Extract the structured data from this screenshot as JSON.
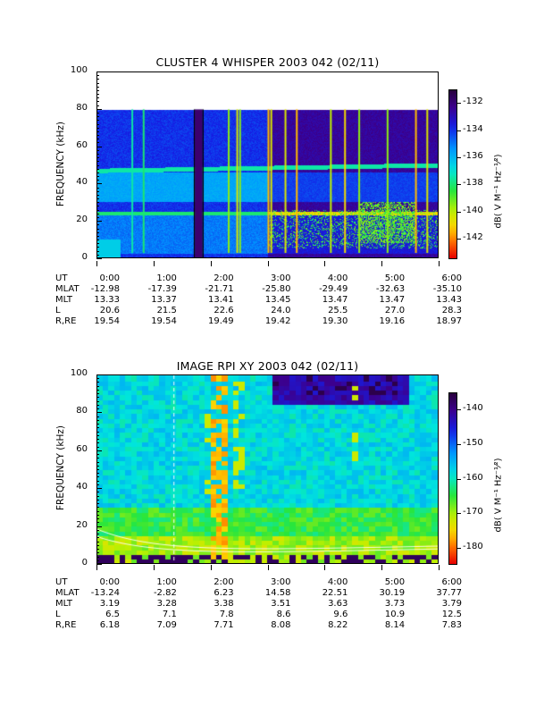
{
  "chart_data": [
    {
      "type": "heatmap",
      "title": "CLUSTER 4 WHISPER 2003 042 (02/11)",
      "ylabel": "FREQUENCY (kHz)",
      "ylim": [
        0,
        100
      ],
      "yticks": [
        "0",
        "20",
        "40",
        "60",
        "80",
        "100"
      ],
      "data_top_khz": 80,
      "colorbar": {
        "label": "dB( V M⁻¹ Hz⁻¹⁄²)",
        "range": [
          -143.5,
          -131
        ],
        "ticks": [
          "-132",
          "-134",
          "-136",
          "-138",
          "-140",
          "-142"
        ]
      },
      "ephemeris": {
        "labels": [
          "UT",
          "MLAT",
          "MLT",
          "L",
          "R,RE"
        ],
        "UT": [
          "0:00",
          "1:00",
          "2:00",
          "3:00",
          "4:00",
          "5:00",
          "6:00"
        ],
        "MLAT": [
          "-12.98",
          "-17.39",
          "-21.71",
          "-25.80",
          "-29.49",
          "-32.63",
          "-35.10"
        ],
        "MLT": [
          "13.33",
          "13.37",
          "13.41",
          "13.45",
          "13.47",
          "13.47",
          "13.43"
        ],
        "L": [
          "20.6",
          "21.5",
          "22.6",
          "24.0",
          "25.5",
          "27.0",
          "28.3"
        ],
        "R,RE": [
          "19.54",
          "19.54",
          "19.49",
          "19.42",
          "19.30",
          "19.16",
          "18.97"
        ]
      }
    },
    {
      "type": "heatmap",
      "title": "IMAGE RPI XY 2003 042 (02/11)",
      "ylabel": "FREQUENCY (kHz)",
      "ylim": [
        0,
        100
      ],
      "yticks": [
        "0",
        "20",
        "40",
        "60",
        "80",
        "100"
      ],
      "colorbar": {
        "label": "dB( V M⁻¹ Hz⁻¹⁄²)",
        "range": [
          -185,
          -135
        ],
        "ticks": [
          "-140",
          "-150",
          "-160",
          "-170",
          "-180"
        ]
      },
      "ephemeris": {
        "labels": [
          "UT",
          "MLAT",
          "MLT",
          "L",
          "R,RE"
        ],
        "UT": [
          "0:00",
          "1:00",
          "2:00",
          "3:00",
          "4:00",
          "5:00",
          "6:00"
        ],
        "MLAT": [
          "-13.24",
          "-2.82",
          "6.23",
          "14.58",
          "22.51",
          "30.19",
          "37.77"
        ],
        "MLT": [
          "3.19",
          "3.28",
          "3.38",
          "3.51",
          "3.63",
          "3.73",
          "3.79"
        ],
        "L": [
          "6.5",
          "7.1",
          "7.8",
          "8.6",
          "9.6",
          "10.9",
          "12.5"
        ],
        "R,RE": [
          "6.18",
          "7.09",
          "7.71",
          "8.08",
          "8.22",
          "8.14",
          "7.83"
        ]
      }
    }
  ]
}
